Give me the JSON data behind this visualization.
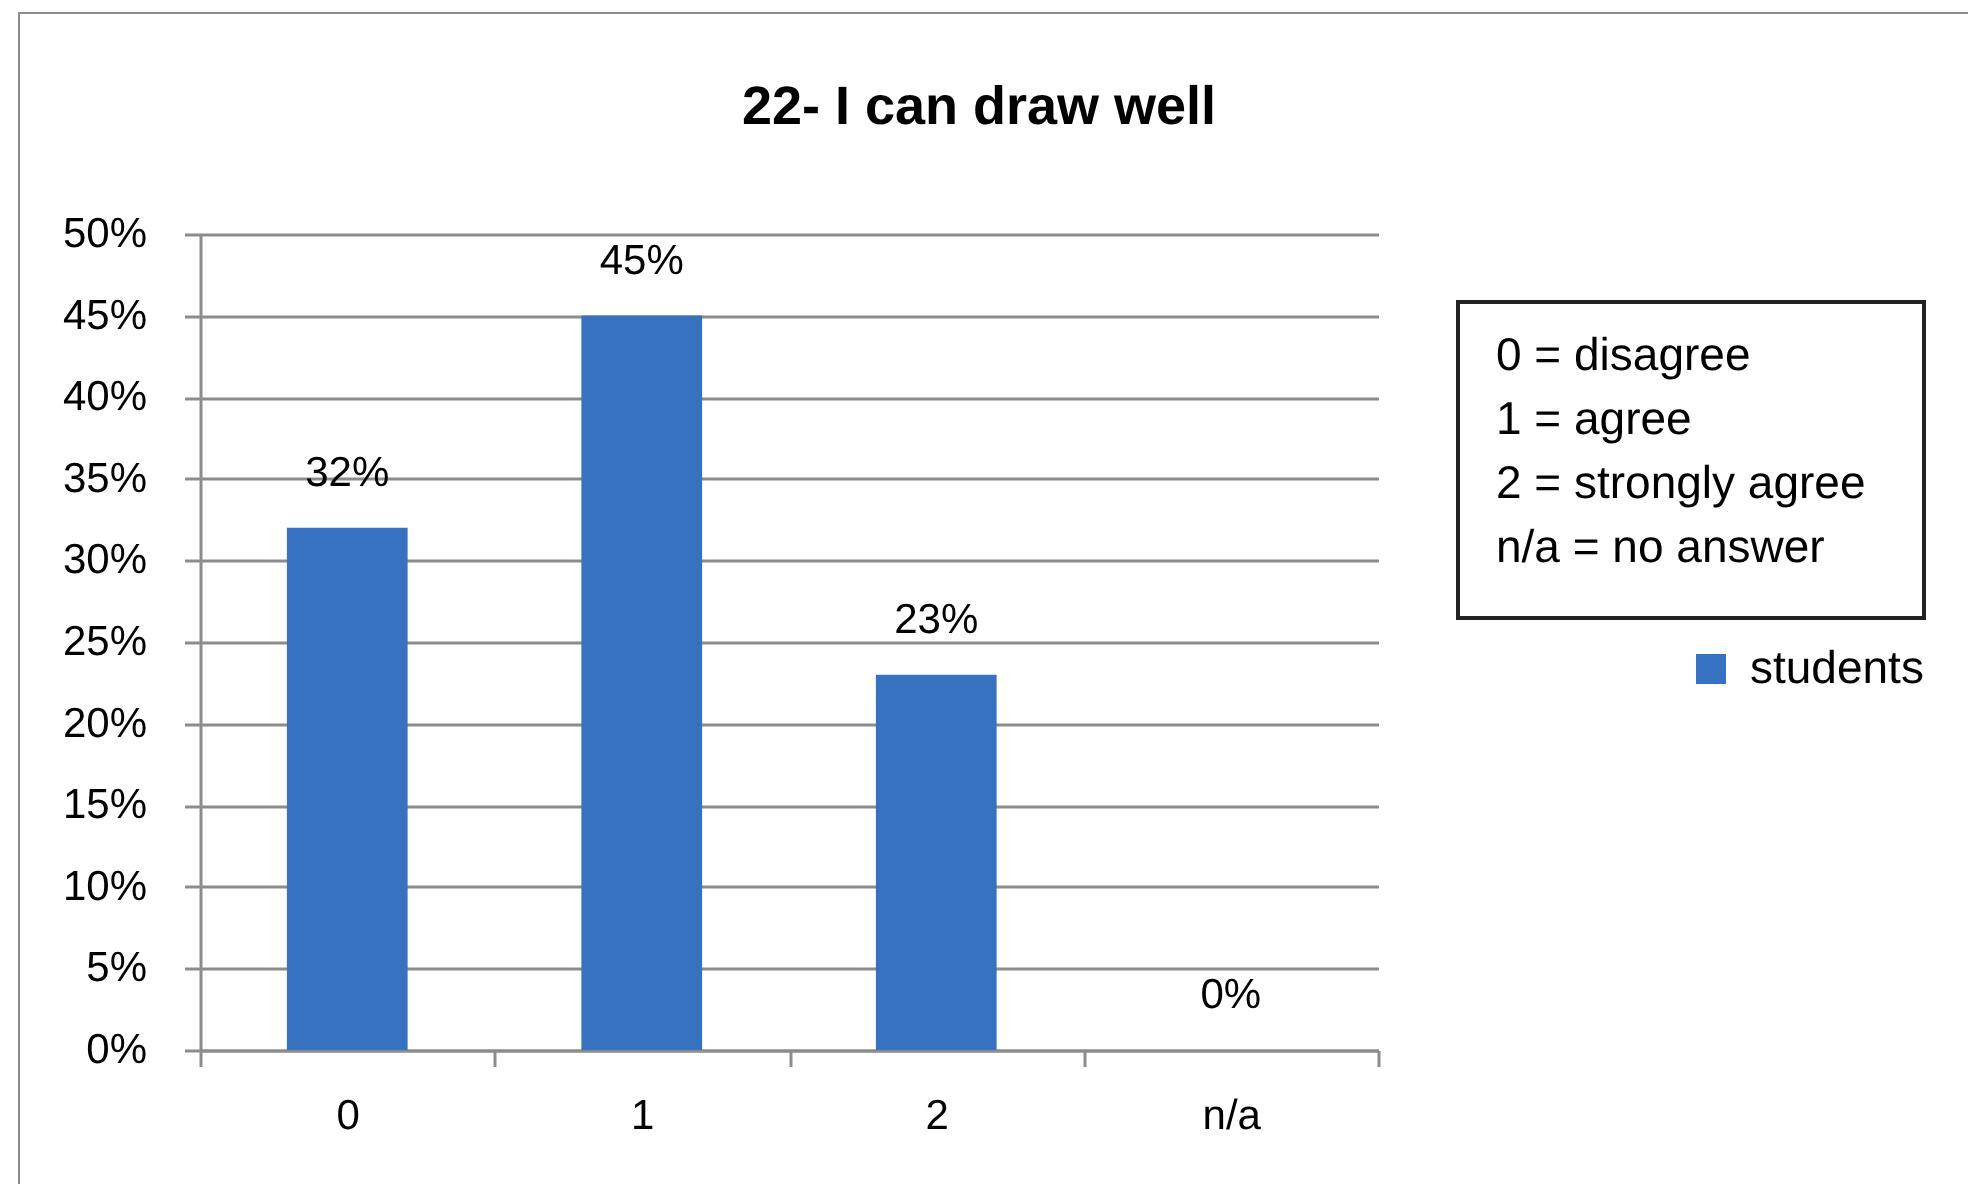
{
  "chart_data": {
    "type": "bar",
    "title": "22- I can draw well",
    "categories": [
      "0",
      "1",
      "2",
      "n/a"
    ],
    "series": [
      {
        "name": "students",
        "color": "#3672c0",
        "values": [
          32,
          45,
          23,
          0
        ],
        "value_labels": [
          "32%",
          "45%",
          "23%",
          "0%"
        ]
      }
    ],
    "ylim": [
      0,
      50
    ],
    "yticks": [
      {
        "value": 0,
        "label": "0%"
      },
      {
        "value": 5,
        "label": "5%"
      },
      {
        "value": 10,
        "label": "10%"
      },
      {
        "value": 15,
        "label": "15%"
      },
      {
        "value": 20,
        "label": "20%"
      },
      {
        "value": 25,
        "label": "25%"
      },
      {
        "value": 30,
        "label": "30%"
      },
      {
        "value": 35,
        "label": "35%"
      },
      {
        "value": 40,
        "label": "40%"
      },
      {
        "value": 45,
        "label": "45%"
      },
      {
        "value": 50,
        "label": "50%"
      }
    ],
    "grid": "y",
    "legend": "right",
    "annotations": [
      "0 = disagree",
      "1 = agree",
      "2 = strongly agree",
      "n/a = no answer"
    ]
  }
}
